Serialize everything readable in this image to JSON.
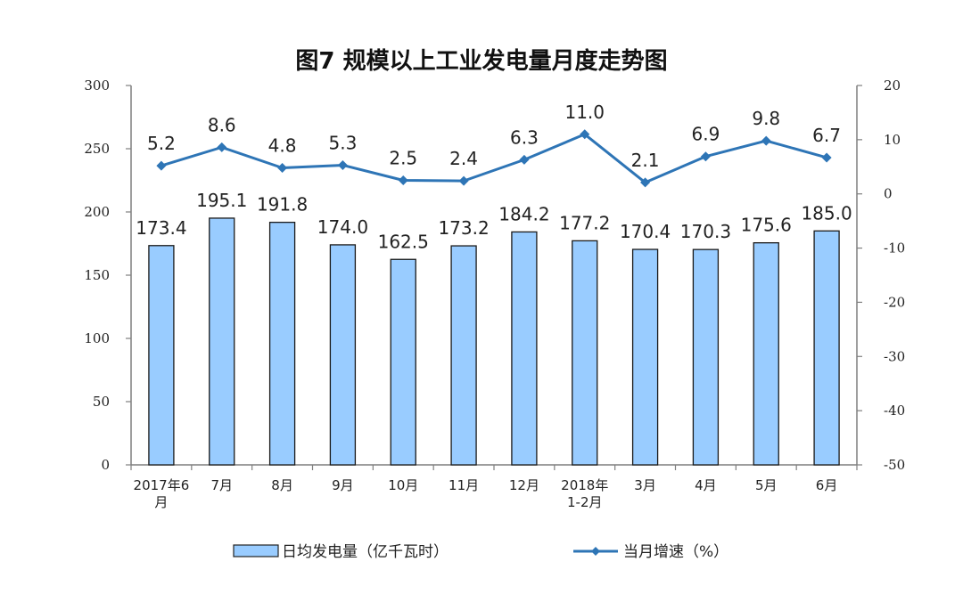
{
  "chart_data": {
    "type": "bar",
    "title": "图7  规模以上工业发电量月度走势图",
    "categories": [
      [
        "2017年6",
        "月"
      ],
      [
        "7月"
      ],
      [
        "8月"
      ],
      [
        "9月"
      ],
      [
        "10月"
      ],
      [
        "11月"
      ],
      [
        "12月"
      ],
      [
        "2018年",
        "1-2月"
      ],
      [
        "3月"
      ],
      [
        "4月"
      ],
      [
        "5月"
      ],
      [
        "6月"
      ]
    ],
    "series": [
      {
        "name": "日均发电量（亿千瓦时）",
        "type": "bar",
        "axis": "left",
        "color": "#99ccff",
        "values": [
          173.4,
          195.1,
          191.8,
          174.0,
          162.5,
          173.2,
          184.2,
          177.2,
          170.4,
          170.3,
          175.6,
          185.0
        ],
        "labels": [
          "173.4",
          "195.1",
          "191.8",
          "174.0",
          "162.5",
          "173.2",
          "184.2",
          "177.2",
          "170.4",
          "170.3",
          "175.6",
          "185.0"
        ]
      },
      {
        "name": "当月增速（%）",
        "type": "line",
        "axis": "right",
        "color": "#2e75b6",
        "values": [
          5.2,
          8.6,
          4.8,
          5.3,
          2.5,
          2.4,
          6.3,
          11.0,
          2.1,
          6.9,
          9.8,
          6.7
        ],
        "labels": [
          "5.2",
          "8.6",
          "4.8",
          "5.3",
          "2.5",
          "2.4",
          "6.3",
          "11.0",
          "2.1",
          "6.9",
          "9.8",
          "6.7"
        ]
      }
    ],
    "y_left": {
      "range": [
        0,
        300
      ],
      "ticks": [
        "0",
        "50",
        "100",
        "150",
        "200",
        "250",
        "300"
      ]
    },
    "y_right": {
      "range": [
        -50,
        20
      ],
      "ticks": [
        "-50",
        "-40",
        "-30",
        "-20",
        "-10",
        "0",
        "10",
        "20"
      ]
    },
    "grid": false,
    "legend_position": "bottom"
  }
}
